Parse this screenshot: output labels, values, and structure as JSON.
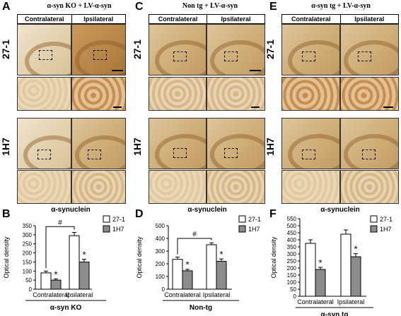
{
  "panels": {
    "A": {
      "letter": "A",
      "title": "α-syn KO + LV-α-syn"
    },
    "C": {
      "letter": "C",
      "title": "Non tg + LV-α-syn"
    },
    "E": {
      "letter": "E",
      "title": "α-syn tg + LV-α-syn"
    }
  },
  "columns": {
    "contra": "Contralateral",
    "ipsi": "Ipsilateral"
  },
  "rows": {
    "r1": "27-1",
    "r2": "1H7"
  },
  "charts": {
    "B": {
      "letter": "B",
      "title": "α-synuclein",
      "ylabel": "Optical density",
      "group_label": "α-syn KO"
    },
    "D": {
      "letter": "D",
      "title": "α-synuclein",
      "ylabel": "Optical density",
      "group_label": "Non-tg"
    },
    "F": {
      "letter": "F",
      "title": "α-synuclein",
      "ylabel": "Optical density",
      "group_label": "α-syn tg"
    }
  },
  "chart_data": [
    {
      "type": "bar",
      "title": "α-synuclein",
      "ylabel": "Optical density",
      "xlabel": "α-syn KO",
      "categories": [
        "Contralateral",
        "Ipsilateral"
      ],
      "series": [
        {
          "name": "27-1",
          "values": [
            90,
            295
          ],
          "errors": [
            10,
            18
          ]
        },
        {
          "name": "1H7",
          "values": [
            50,
            150
          ],
          "errors": [
            7,
            15
          ]
        }
      ],
      "ylim": [
        0,
        350
      ],
      "yticks": [
        0,
        50,
        100,
        150,
        200,
        250,
        300,
        350
      ],
      "significance": [
        "*",
        "*"
      ],
      "bracket_label": "#"
    },
    {
      "type": "bar",
      "title": "α-synuclein",
      "ylabel": "Optical density",
      "xlabel": "Non-tg",
      "categories": [
        "Contralateral",
        "Ipsilateral"
      ],
      "series": [
        {
          "name": "27-1",
          "values": [
            235,
            350
          ],
          "errors": [
            18,
            15
          ]
        },
        {
          "name": "1H7",
          "values": [
            145,
            220
          ],
          "errors": [
            12,
            18
          ]
        }
      ],
      "ylim": [
        0,
        500
      ],
      "yticks": [
        0,
        100,
        200,
        300,
        400,
        500
      ],
      "significance": [
        "*",
        "*"
      ],
      "bracket_label": "#"
    },
    {
      "type": "bar",
      "title": "α-synuclein",
      "ylabel": "Optical density",
      "xlabel": "α-syn tg",
      "categories": [
        "Contralateral",
        "Ipsilateral"
      ],
      "series": [
        {
          "name": "27-1",
          "values": [
            375,
            440
          ],
          "errors": [
            25,
            30
          ]
        },
        {
          "name": "1H7",
          "values": [
            190,
            280
          ],
          "errors": [
            15,
            22
          ]
        }
      ],
      "ylim": [
        0,
        550
      ],
      "yticks": [
        0,
        50,
        100,
        150,
        200,
        250,
        300,
        350,
        400,
        450,
        500,
        550
      ],
      "significance": [
        "*",
        "*"
      ]
    }
  ]
}
